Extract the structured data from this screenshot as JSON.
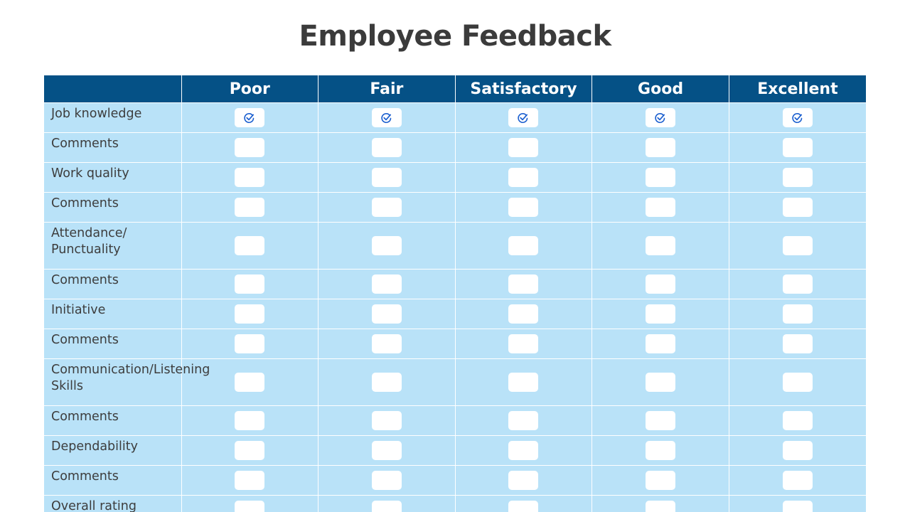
{
  "title": "Employee Feedback",
  "columns": [
    "Poor",
    "Fair",
    "Satisfactory",
    "Good",
    "Excellent"
  ],
  "rows": [
    {
      "label": "Job knowledge",
      "checked": [
        true,
        true,
        true,
        true,
        true
      ]
    },
    {
      "label": "Comments",
      "checked": [
        false,
        false,
        false,
        false,
        false
      ]
    },
    {
      "label": "Work quality",
      "checked": [
        false,
        false,
        false,
        false,
        false
      ]
    },
    {
      "label": "Comments",
      "checked": [
        false,
        false,
        false,
        false,
        false
      ]
    },
    {
      "label": "Attendance/ Punctuality",
      "checked": [
        false,
        false,
        false,
        false,
        false
      ]
    },
    {
      "label": "Comments",
      "checked": [
        false,
        false,
        false,
        false,
        false
      ]
    },
    {
      "label": "Initiative",
      "checked": [
        false,
        false,
        false,
        false,
        false
      ]
    },
    {
      "label": "Comments",
      "checked": [
        false,
        false,
        false,
        false,
        false
      ]
    },
    {
      "label": "Communication/Listening Skills",
      "checked": [
        false,
        false,
        false,
        false,
        false
      ]
    },
    {
      "label": "Comments",
      "checked": [
        false,
        false,
        false,
        false,
        false
      ]
    },
    {
      "label": "Dependability",
      "checked": [
        false,
        false,
        false,
        false,
        false
      ]
    },
    {
      "label": "Comments",
      "checked": [
        false,
        false,
        false,
        false,
        false
      ]
    },
    {
      "label": "Overall rating",
      "checked": [
        false,
        false,
        false,
        false,
        false
      ]
    }
  ],
  "colors": {
    "header_bg": "#055186",
    "cell_bg": "#b9e2f8",
    "check_color": "#1b5fcf",
    "title_color": "#3b3b3b"
  },
  "icons": {
    "checked": "check-circle-icon"
  }
}
